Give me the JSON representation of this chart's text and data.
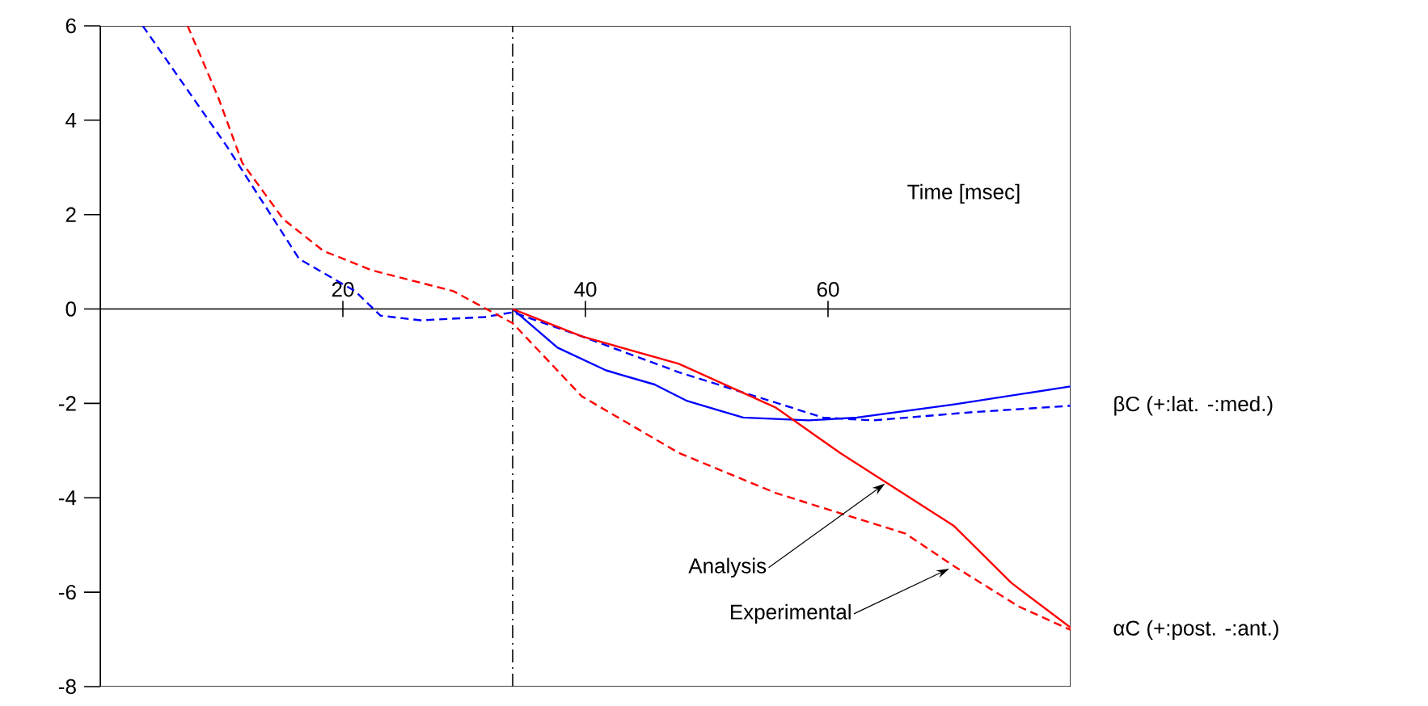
{
  "chart_data": {
    "type": "line",
    "xlabel": "Time [msec]",
    "xlim": [
      0,
      80
    ],
    "xticks": [
      20,
      40,
      60
    ],
    "ylim": [
      -8,
      6
    ],
    "yticks": [
      -8,
      -6,
      -4,
      -2,
      0,
      2,
      4,
      6
    ],
    "grid": false,
    "series": [
      {
        "color": "#0000ff",
        "line_style": "dashed",
        "x": [
          3.5,
          10.4,
          16.4,
          21,
          23.1,
          26.4,
          31.7,
          34,
          39.7,
          47.7,
          59.6,
          63.7,
          71.7,
          80
        ],
        "values": [
          6,
          3.46,
          1.06,
          0.38,
          -0.14,
          -0.24,
          -0.17,
          -0.07,
          -0.58,
          -1.34,
          -2.3,
          -2.36,
          -2.19,
          -2.05
        ]
      },
      {
        "color": "#0000ff",
        "line_style": "solid",
        "x": [
          34,
          37.7,
          41.7,
          45.7,
          48.4,
          53,
          58.4,
          62.4,
          70.4,
          80
        ],
        "values": [
          0,
          -0.82,
          -1.3,
          -1.6,
          -1.95,
          -2.3,
          -2.36,
          -2.3,
          -2.02,
          -1.64
        ]
      },
      {
        "color": "#ff0000",
        "line_style": "dashed",
        "x": [
          7.2,
          9.7,
          11.7,
          15.1,
          18.4,
          22.4,
          29.1,
          34,
          39.7,
          47.7,
          55.7,
          66.4,
          70.4,
          75.7,
          80
        ],
        "values": [
          6,
          4.5,
          3.1,
          1.9,
          1.23,
          0.82,
          0.38,
          -0.3,
          -1.85,
          -3.05,
          -3.9,
          -4.76,
          -5.45,
          -6.3,
          -6.8
        ]
      },
      {
        "color": "#ff0000",
        "line_style": "solid",
        "x": [
          34,
          39.7,
          47.7,
          55.7,
          61,
          66.4,
          70.4,
          75.1,
          80
        ],
        "values": [
          0,
          -0.58,
          -1.16,
          -2.09,
          -3.05,
          -3.94,
          -4.6,
          -5.8,
          -6.75
        ]
      }
    ],
    "ref_lines": [
      {
        "axis": "x",
        "value": 34,
        "color": "#000000",
        "line_style": "dashdot"
      }
    ],
    "annotations": [
      {
        "text": "βC (+:lat. -:med.)",
        "x": 80,
        "y": -2.05
      },
      {
        "text": "αC (+:post. -:ant.)",
        "x": 80,
        "y": -6.8
      },
      {
        "text": "Analysis",
        "x": 64.7,
        "y": -3.7
      },
      {
        "text": "Experimental",
        "x": 70,
        "y": -5.5
      }
    ]
  }
}
